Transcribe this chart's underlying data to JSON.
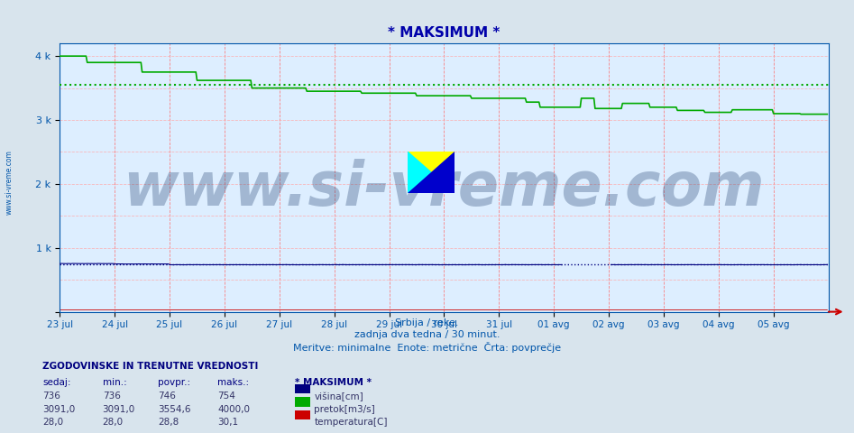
{
  "title": "* MAKSIMUM *",
  "bg_color": "#d8e4ed",
  "plot_bg_color": "#ddeeff",
  "grid_color_v": "#ff6666",
  "grid_color_h": "#ffaaaa",
  "xlabel_line1": "Srbija / reke.",
  "xlabel_line2": "zadnja dva tedna / 30 minut.",
  "xlabel_line3": "Meritve: minimalne  Enote: metrične  Črta: povprečje",
  "title_color": "#0000aa",
  "axis_color": "#0055aa",
  "xticklabels": [
    "23 jul",
    "24 jul",
    "25 jul",
    "26 jul",
    "27 jul",
    "28 jul",
    "29 jul",
    "30 jul",
    "31 jul",
    "01 avg",
    "02 avg",
    "03 avg",
    "04 avg",
    "05 avg"
  ],
  "ytick_positions": [
    0,
    1000,
    2000,
    3000,
    4000
  ],
  "ytick_labels": [
    "",
    "1 k",
    "2 k",
    "3 k",
    "4 k"
  ],
  "ymax": 4200,
  "watermark_text": "www.si-vreme.com",
  "watermark_color": "#1a3a6a",
  "watermark_alpha": 0.3,
  "watermark_fontsize": 48,
  "sidebar_text": "www.si-vreme.com",
  "sidebar_color": "#0055aa",
  "line_visina_color": "#000080",
  "line_pretok_color": "#00aa00",
  "line_temp_color": "#cc0000",
  "avg_visina": 746,
  "avg_pretok": 3554.6,
  "avg_temp": 28.8,
  "legend_rows": [
    {
      "sedaj": "736",
      "min": "736",
      "povpr": "746",
      "maks": "754",
      "label": "višina[cm]",
      "color": "#000080"
    },
    {
      "sedaj": "3091,0",
      "min": "3091,0",
      "povpr": "3554,6",
      "maks": "4000,0",
      "label": "pretok[m3/s]",
      "color": "#00aa00"
    },
    {
      "sedaj": "28,0",
      "min": "28,0",
      "povpr": "28,8",
      "maks": "30,1",
      "label": "temperatura[C]",
      "color": "#cc0000"
    }
  ],
  "num_points": 672,
  "temp_value": 28.0
}
